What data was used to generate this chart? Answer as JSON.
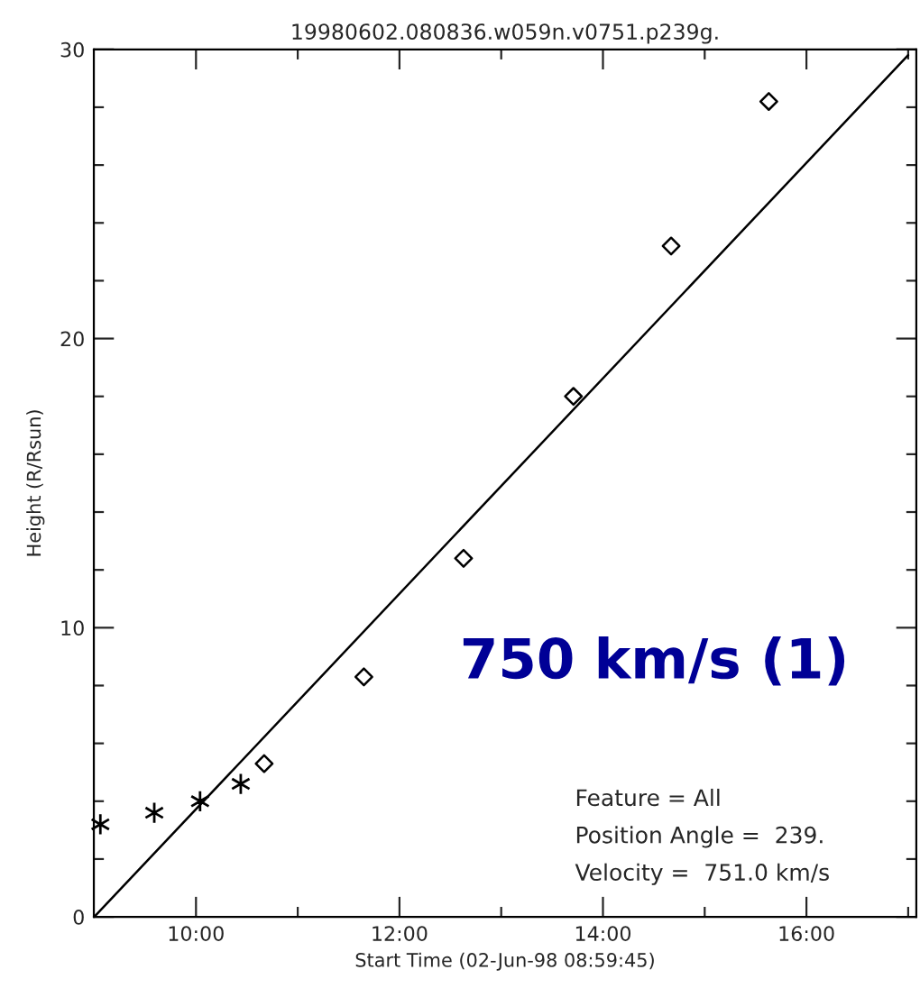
{
  "chart_data": {
    "type": "scatter",
    "title": "19980602.080836.w059n.v0751.p239g.",
    "xlabel": "Start Time (02-Jun-98 08:59:45)",
    "ylabel": "Height (R/Rsun)",
    "xlim": [
      8.996,
      17.08
    ],
    "ylim": [
      0,
      30
    ],
    "xticks": [
      {
        "value": 10,
        "label": "10:00"
      },
      {
        "value": 11,
        "label": null
      },
      {
        "value": 12,
        "label": "12:00"
      },
      {
        "value": 13,
        "label": null
      },
      {
        "value": 14,
        "label": "14:00"
      },
      {
        "value": 15,
        "label": null
      },
      {
        "value": 16,
        "label": "16:00"
      },
      {
        "value": 17,
        "label": null
      }
    ],
    "yticks": [
      0,
      {
        "value": 2,
        "label": null
      },
      {
        "value": 4,
        "label": null
      },
      {
        "value": 6,
        "label": null
      },
      {
        "value": 8,
        "label": null
      },
      10,
      {
        "value": 12,
        "label": null
      },
      {
        "value": 14,
        "label": null
      },
      {
        "value": 16,
        "label": null
      },
      {
        "value": 18,
        "label": null
      },
      20,
      {
        "value": 22,
        "label": null
      },
      {
        "value": 24,
        "label": null
      },
      {
        "value": 26,
        "label": null
      },
      {
        "value": 28,
        "label": null
      },
      30
    ],
    "series": [
      {
        "marker": "cross",
        "color": "#000000",
        "x": [
          9.06,
          9.59,
          10.04,
          10.44
        ],
        "values": [
          3.2,
          3.6,
          4.0,
          4.6
        ]
      },
      {
        "marker": "diamond",
        "color": "#000000",
        "x": [
          10.67,
          11.65,
          12.63,
          13.71,
          14.67,
          15.63
        ],
        "values": [
          5.3,
          8.3,
          12.4,
          18.0,
          23.2,
          28.2
        ]
      },
      {
        "type": "line",
        "marker": "none",
        "line_style": "solid",
        "color": "#000000",
        "x": [
          9.0,
          17.0
        ],
        "values": [
          0.0,
          29.8
        ]
      }
    ],
    "annotations": [
      "750 km/s (1)",
      "Feature = All",
      "Position Angle =  239.",
      "Velocity =  751.0 km/s"
    ],
    "grid": false,
    "legend": false
  }
}
